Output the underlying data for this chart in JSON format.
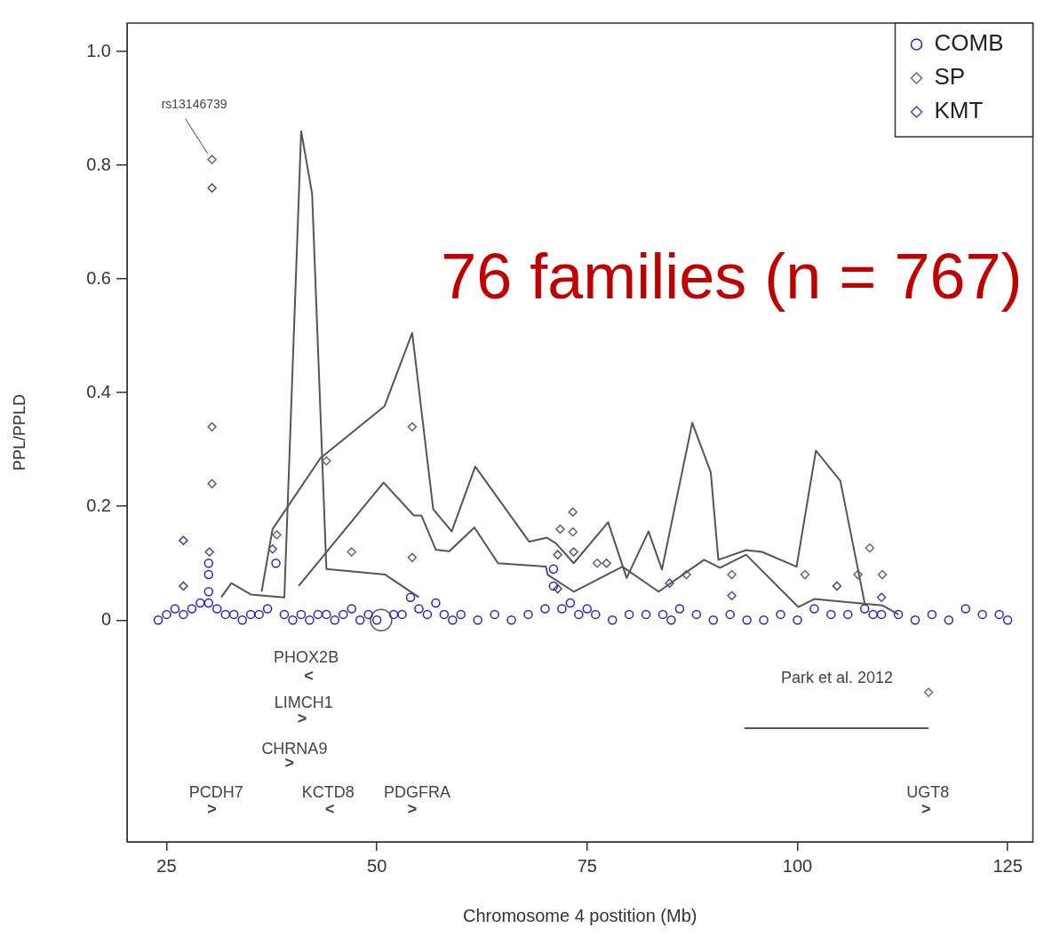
{
  "chart_data": {
    "type": "scatter",
    "xlabel": "Chromosome 4 postition (Mb)",
    "ylabel": "PPL/PPLD",
    "xlim": [
      20.3,
      128
    ],
    "xticks": [
      25,
      50,
      75,
      100,
      125
    ],
    "ylim": [
      -0.39,
      1.05
    ],
    "yticks": [
      0,
      0.2,
      0.4,
      0.6,
      0.8,
      {
        "value": 1,
        "label": "1.0"
      }
    ],
    "grid": false,
    "legend": "top right",
    "series": [
      {
        "type": "line",
        "color": "#555555",
        "line_style": "solid",
        "x": [
          31.5,
          32.7,
          35,
          39,
          41,
          42.3,
          44,
          51,
          55
        ],
        "values": [
          0.04,
          0.065,
          0.045,
          0.04,
          0.86,
          0.75,
          0.09,
          0.08,
          0.04
        ]
      },
      {
        "type": "line",
        "color": "#555555",
        "line_style": "solid",
        "x": [
          36.3,
          37.6,
          43.3,
          50.9,
          54.2,
          56.7,
          58.9,
          61.7,
          68.1,
          70.2,
          71.3,
          73.4,
          77.5,
          79.7,
          82.3,
          83.9,
          87.5,
          89.7,
          90.6,
          93.9,
          95.8,
          99.9,
          102.2,
          105.1,
          108
        ],
        "values": [
          0.05,
          0.16,
          0.285,
          0.376,
          0.505,
          0.195,
          0.156,
          0.27,
          0.138,
          0.145,
          0.135,
          0.1,
          0.172,
          0.074,
          0.156,
          0.089,
          0.347,
          0.26,
          0.106,
          0.123,
          0.12,
          0.094,
          0.298,
          0.245,
          0.03
        ]
      },
      {
        "type": "line",
        "color": "#555555",
        "line_style": "solid",
        "x": [
          40.7,
          50.8,
          54.4,
          55.3,
          57,
          58.6,
          61.6,
          64.4,
          70.1,
          70.3,
          73.4,
          79.2,
          83.5,
          88.9,
          90.8,
          93.9,
          100.1,
          102,
          110.1,
          112
        ],
        "values": [
          0.06,
          0.242,
          0.184,
          0.184,
          0.124,
          0.121,
          0.163,
          0.1,
          0.094,
          0.08,
          0.05,
          0.094,
          0.05,
          0.106,
          0.092,
          0.115,
          0.023,
          0.037,
          0.026,
          0.01
        ]
      },
      {
        "name": "COMB",
        "marker": "circle",
        "color": "#2424c8",
        "x": [
          24,
          25,
          26,
          27,
          28,
          29,
          30,
          30,
          30,
          30,
          31,
          32,
          33,
          34,
          35,
          36,
          37,
          38,
          39,
          40,
          41,
          42,
          43,
          44,
          45,
          46,
          47,
          48,
          49,
          50,
          52,
          53,
          54,
          55,
          56,
          57,
          58,
          59,
          60,
          62,
          64,
          66,
          68,
          70,
          71,
          71,
          72,
          73,
          74,
          75,
          76,
          78,
          80,
          82,
          84,
          85,
          86,
          88,
          90,
          92,
          94,
          96,
          98,
          100,
          102,
          104,
          106,
          108,
          109,
          110,
          112,
          114,
          116,
          118,
          120,
          122,
          124,
          125
        ],
        "values": [
          0,
          0.01,
          0.02,
          0.01,
          0.02,
          0.03,
          0.05,
          0.08,
          0.1,
          0.03,
          0.02,
          0.01,
          0.01,
          0,
          0.01,
          0.01,
          0.02,
          0.1,
          0.01,
          0,
          0.01,
          0,
          0.01,
          0.01,
          0,
          0.01,
          0.02,
          0,
          0.01,
          0,
          0.01,
          0.01,
          0.04,
          0.02,
          0.01,
          0.03,
          0.01,
          0,
          0.01,
          0,
          0.01,
          0,
          0.01,
          0.02,
          0.06,
          0.09,
          0.02,
          0.03,
          0.01,
          0.02,
          0.01,
          0,
          0.01,
          0.01,
          0.01,
          0,
          0.02,
          0.01,
          0,
          0.01,
          0,
          0,
          0.01,
          0,
          0.02,
          0.01,
          0.01,
          0.02,
          0.01,
          0.01,
          0.01,
          0,
          0.01,
          0,
          0.02,
          0.01,
          0.01,
          0
        ]
      },
      {
        "name": "SP",
        "marker": "diamond",
        "color": "#666677",
        "x": [
          30.4,
          30.4,
          30.4,
          38.1,
          44,
          47,
          54.2,
          54.2,
          73.3,
          71.8,
          73.3,
          76.2,
          86.8,
          92.2,
          100.9,
          107.2,
          108.6,
          110.1
        ],
        "values": [
          0.81,
          0.34,
          0.24,
          0.15,
          0.28,
          0.12,
          0.34,
          0.11,
          0.19,
          0.16,
          0.155,
          0.1,
          0.08,
          0.08,
          0.08,
          0.08,
          0.127,
          0.08
        ]
      },
      {
        "name": "KMT",
        "marker": "diamond",
        "color": "#4a4a90",
        "x": [
          30.4,
          27,
          27,
          30.1,
          37.6,
          71.5,
          73.4,
          77.3,
          84.8,
          71.5,
          92.2,
          104.7,
          110
        ],
        "values": [
          0.76,
          0.14,
          0.06,
          0.12,
          0.125,
          0.115,
          0.12,
          0.1,
          0.065,
          0.055,
          0.043,
          0.06,
          0.04
        ]
      },
      {
        "marker": "circle",
        "color": "#555555",
        "x": [
          50.5
        ],
        "values": [
          0
        ]
      },
      {
        "type": "line",
        "color": "#555555",
        "line_style": "solid",
        "x": [
          93.7,
          115.6
        ],
        "values": [
          -0.19,
          -0.19
        ]
      },
      {
        "marker": "diamond",
        "color": "#777777",
        "x": [
          115.6
        ],
        "values": [
          -0.127
        ]
      }
    ],
    "annotations": [
      "76 families (n = 767)",
      {
        "text": "rs13146739",
        "x": 30.4,
        "y": 0.81
      },
      "PHOX2B",
      "<",
      "LIMCH1",
      ">",
      "CHRNA9",
      ">",
      "PCDH7",
      ">",
      "KCTD8",
      "<",
      "PDGFRA",
      ">",
      "UGT8",
      ">",
      "Park et al. 2012"
    ]
  }
}
